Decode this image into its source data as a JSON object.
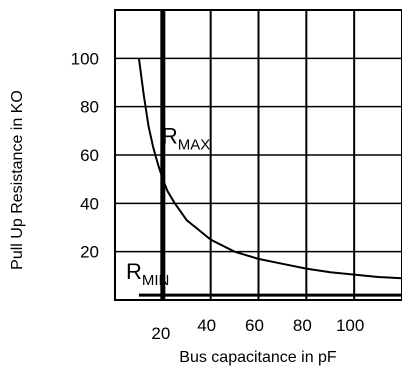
{
  "chart_data": {
    "type": "line",
    "xlabel": "Bus capacitance in pF",
    "ylabel": "Pull Up Resistance in KO",
    "xlim": [
      0,
      120
    ],
    "ylim": [
      0,
      120
    ],
    "xticks": [
      20,
      40,
      60,
      80,
      100
    ],
    "yticks": [
      20,
      40,
      60,
      80,
      100
    ],
    "grid": true,
    "series": [
      {
        "x": [
          10,
          12,
          14,
          16,
          18,
          20,
          22,
          25,
          30,
          35,
          40,
          50,
          60,
          70,
          80,
          90,
          100,
          110,
          120
        ],
        "y": [
          100,
          85,
          72,
          63,
          56,
          50,
          45,
          40,
          33,
          29,
          25,
          20,
          17,
          15,
          13,
          11.5,
          10.5,
          9.5,
          9
        ]
      }
    ],
    "reference_lines": [
      {
        "type": "vertical",
        "x": 20
      },
      {
        "type": "horizontal",
        "y": 2
      }
    ],
    "annotations": [
      {
        "main": "R",
        "sub": "MAX",
        "x": 20,
        "y": 68
      },
      {
        "main": "R",
        "sub": "MIN",
        "x": 5,
        "y": 12
      }
    ]
  }
}
